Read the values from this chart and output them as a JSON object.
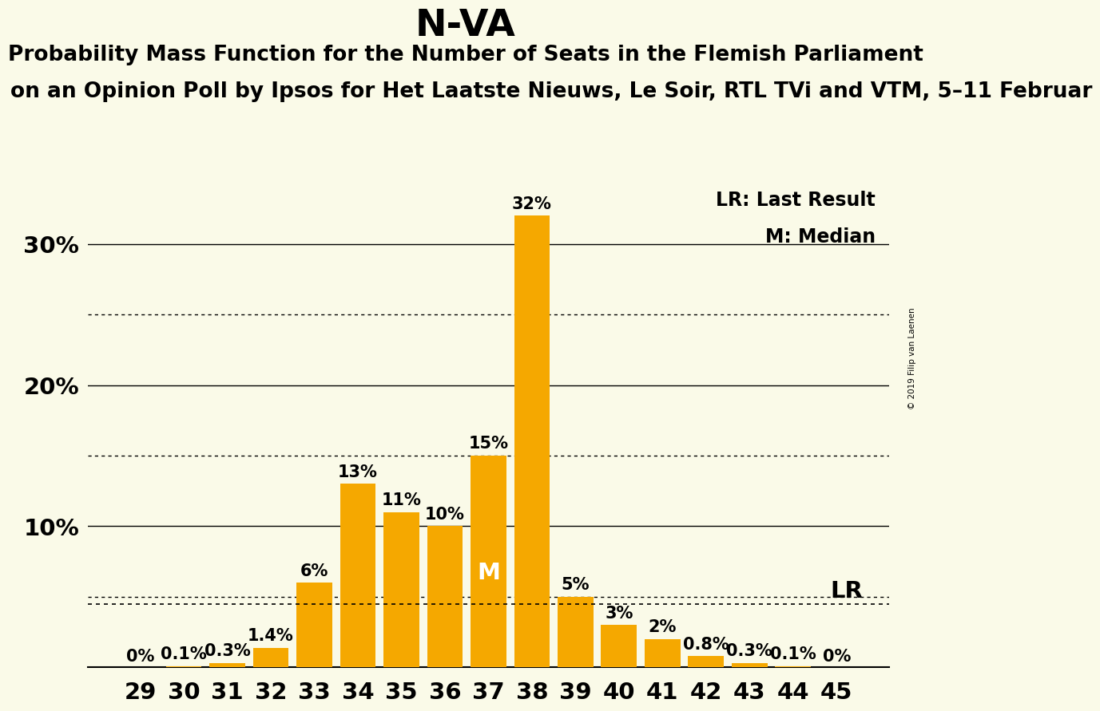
{
  "title": "N-VA",
  "subtitle1": "Probability Mass Function for the Number of Seats in the Flemish Parliament",
  "subtitle2": "on an Opinion Poll by Ipsos for Het Laatste Nieuws, Le Soir, RTL TVi and VTM, 5–11 Februar",
  "watermark": "© 2019 Filip van Laenen",
  "seats": [
    29,
    30,
    31,
    32,
    33,
    34,
    35,
    36,
    37,
    38,
    39,
    40,
    41,
    42,
    43,
    44,
    45
  ],
  "probabilities": [
    0.0,
    0.1,
    0.3,
    1.4,
    6.0,
    13.0,
    11.0,
    10.0,
    15.0,
    32.0,
    5.0,
    3.0,
    2.0,
    0.8,
    0.3,
    0.1,
    0.0
  ],
  "labels": [
    "0%",
    "0.1%",
    "0.3%",
    "1.4%",
    "6%",
    "13%",
    "11%",
    "10%",
    "15%",
    "32%",
    "5%",
    "3%",
    "2%",
    "0.8%",
    "0.3%",
    "0.1%",
    "0%"
  ],
  "bar_color": "#F5A800",
  "background_color": "#FAFAE8",
  "median_seat": 37,
  "last_result_value": 4.5,
  "legend_lr": "LR: Last Result",
  "legend_m": "M: Median",
  "ylim_max": 35,
  "solid_yticks": [
    10,
    20,
    30
  ],
  "dotted_yticks": [
    5,
    15,
    25
  ],
  "title_fontsize": 34,
  "subtitle1_fontsize": 19,
  "subtitle2_fontsize": 19,
  "bar_label_fontsize": 15,
  "legend_fontsize": 17,
  "tick_fontsize": 21,
  "median_label_fontsize": 21,
  "lr_label_fontsize": 21
}
